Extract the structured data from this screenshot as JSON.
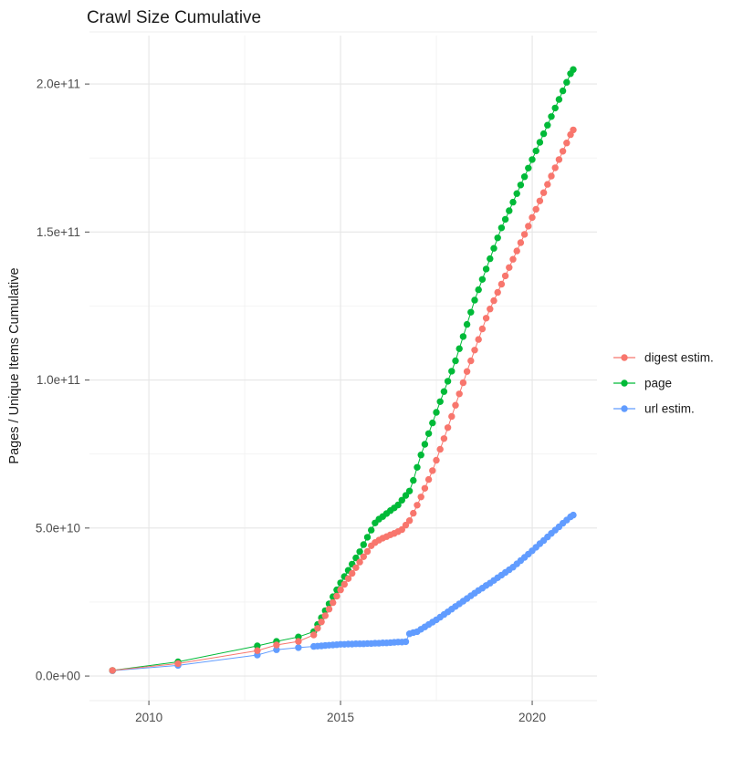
{
  "chart_data": {
    "type": "scatter",
    "title": "Crawl Size Cumulative",
    "xlabel": "",
    "ylabel": "Pages / Unique Items Cumulative",
    "grid": "major and minor, light grey on white",
    "legend_position": "right",
    "value_unit": "billions (1e9 items); y tick labels shown in scientific notation",
    "x_axis": {
      "lim": [
        2008.45,
        2021.69
      ],
      "major_ticks": [
        {
          "value": 2010,
          "label": "2010"
        },
        {
          "value": 2015,
          "label": "2015"
        },
        {
          "value": 2020,
          "label": "2020"
        }
      ],
      "minor_ticks": [
        2012.5,
        2017.5
      ]
    },
    "y_axis": {
      "lim": [
        -8.3,
        217.6
      ],
      "major_ticks": [
        {
          "value": 0,
          "label": "0.0e+00"
        },
        {
          "value": 50,
          "label": "5.0e+10"
        },
        {
          "value": 100,
          "label": "1.0e+11"
        },
        {
          "value": 150,
          "label": "1.5e+11"
        },
        {
          "value": 200,
          "label": "2.0e+11"
        }
      ],
      "minor_ticks": [
        25,
        75,
        125,
        175
      ]
    },
    "series": [
      {
        "name": "digest estim.",
        "color": "#F8766D",
        "points": [
          [
            2009.05,
            1.9
          ],
          [
            2010.76,
            4.2
          ],
          [
            2012.83,
            8.6
          ],
          [
            2013.33,
            10.5
          ],
          [
            2013.9,
            11.7
          ],
          [
            2014.3,
            13.9
          ],
          [
            2014.4,
            16.1
          ],
          [
            2014.5,
            18.3
          ],
          [
            2014.6,
            20.4
          ],
          [
            2014.7,
            22.6
          ],
          [
            2014.8,
            24.8
          ],
          [
            2014.9,
            27.0
          ],
          [
            2015.0,
            29.1
          ],
          [
            2015.1,
            31.0
          ],
          [
            2015.2,
            32.9
          ],
          [
            2015.3,
            34.7
          ],
          [
            2015.4,
            36.6
          ],
          [
            2015.5,
            38.5
          ],
          [
            2015.6,
            40.3
          ],
          [
            2015.7,
            42.1
          ],
          [
            2015.8,
            44.0
          ],
          [
            2015.9,
            45.1
          ],
          [
            2016.0,
            45.9
          ],
          [
            2016.1,
            46.6
          ],
          [
            2016.2,
            47.1
          ],
          [
            2016.3,
            47.7
          ],
          [
            2016.4,
            48.2
          ],
          [
            2016.5,
            48.8
          ],
          [
            2016.6,
            49.5
          ],
          [
            2016.7,
            51.0
          ],
          [
            2016.8,
            52.5
          ],
          [
            2016.9,
            55.0
          ],
          [
            2017.0,
            57.7
          ],
          [
            2017.1,
            60.5
          ],
          [
            2017.2,
            63.4
          ],
          [
            2017.3,
            66.4
          ],
          [
            2017.4,
            69.4
          ],
          [
            2017.5,
            72.9
          ],
          [
            2017.6,
            76.6
          ],
          [
            2017.7,
            80.2
          ],
          [
            2017.8,
            83.9
          ],
          [
            2017.9,
            87.7
          ],
          [
            2018.0,
            91.5
          ],
          [
            2018.1,
            95.3
          ],
          [
            2018.2,
            99.1
          ],
          [
            2018.3,
            102.9
          ],
          [
            2018.4,
            106.5
          ],
          [
            2018.5,
            110.1
          ],
          [
            2018.6,
            113.7
          ],
          [
            2018.7,
            117.3
          ],
          [
            2018.8,
            120.9
          ],
          [
            2018.9,
            124.0
          ],
          [
            2019.0,
            126.8
          ],
          [
            2019.1,
            129.6
          ],
          [
            2019.2,
            132.4
          ],
          [
            2019.3,
            135.2
          ],
          [
            2019.4,
            138.0
          ],
          [
            2019.5,
            140.8
          ],
          [
            2019.6,
            143.6
          ],
          [
            2019.7,
            146.4
          ],
          [
            2019.8,
            149.2
          ],
          [
            2019.9,
            152.0
          ],
          [
            2020.0,
            154.9
          ],
          [
            2020.1,
            157.7
          ],
          [
            2020.2,
            160.5
          ],
          [
            2020.3,
            163.3
          ],
          [
            2020.4,
            166.1
          ],
          [
            2020.5,
            168.9
          ],
          [
            2020.6,
            171.7
          ],
          [
            2020.7,
            174.5
          ],
          [
            2020.8,
            177.3
          ],
          [
            2020.9,
            180.1
          ],
          [
            2021.0,
            182.9
          ],
          [
            2021.07,
            184.5
          ]
        ]
      },
      {
        "name": "page",
        "color": "#00BA38",
        "points": [
          [
            2009.05,
            1.9
          ],
          [
            2010.76,
            4.8
          ],
          [
            2012.83,
            10.2
          ],
          [
            2013.33,
            11.7
          ],
          [
            2013.9,
            13.2
          ],
          [
            2014.3,
            15.0
          ],
          [
            2014.4,
            17.4
          ],
          [
            2014.5,
            19.7
          ],
          [
            2014.6,
            22.1
          ],
          [
            2014.7,
            24.4
          ],
          [
            2014.8,
            26.8
          ],
          [
            2014.9,
            29.1
          ],
          [
            2015.0,
            31.5
          ],
          [
            2015.1,
            33.6
          ],
          [
            2015.2,
            35.7
          ],
          [
            2015.3,
            37.8
          ],
          [
            2015.4,
            39.9
          ],
          [
            2015.5,
            42.0
          ],
          [
            2015.6,
            44.4
          ],
          [
            2015.7,
            46.9
          ],
          [
            2015.8,
            49.3
          ],
          [
            2015.9,
            51.7
          ],
          [
            2016.0,
            53.0
          ],
          [
            2016.1,
            53.9
          ],
          [
            2016.2,
            54.9
          ],
          [
            2016.3,
            55.9
          ],
          [
            2016.4,
            56.8
          ],
          [
            2016.5,
            57.8
          ],
          [
            2016.6,
            59.4
          ],
          [
            2016.7,
            61.0
          ],
          [
            2016.8,
            62.5
          ],
          [
            2016.9,
            66.1
          ],
          [
            2017.0,
            70.5
          ],
          [
            2017.1,
            74.7
          ],
          [
            2017.2,
            78.3
          ],
          [
            2017.3,
            81.9
          ],
          [
            2017.4,
            85.5
          ],
          [
            2017.5,
            89.1
          ],
          [
            2017.6,
            92.7
          ],
          [
            2017.7,
            96.1
          ],
          [
            2017.8,
            99.6
          ],
          [
            2017.9,
            103.0
          ],
          [
            2018.0,
            106.5
          ],
          [
            2018.1,
            110.6
          ],
          [
            2018.2,
            114.7
          ],
          [
            2018.3,
            118.8
          ],
          [
            2018.4,
            122.9
          ],
          [
            2018.5,
            127.0
          ],
          [
            2018.6,
            130.5
          ],
          [
            2018.7,
            134.0
          ],
          [
            2018.8,
            137.5
          ],
          [
            2018.9,
            141.0
          ],
          [
            2019.0,
            144.5
          ],
          [
            2019.1,
            148.0
          ],
          [
            2019.2,
            151.4
          ],
          [
            2019.3,
            154.3
          ],
          [
            2019.4,
            157.2
          ],
          [
            2019.5,
            160.1
          ],
          [
            2019.6,
            163.0
          ],
          [
            2019.7,
            165.9
          ],
          [
            2019.8,
            168.7
          ],
          [
            2019.9,
            171.6
          ],
          [
            2020.0,
            174.5
          ],
          [
            2020.1,
            177.4
          ],
          [
            2020.2,
            180.3
          ],
          [
            2020.3,
            183.2
          ],
          [
            2020.4,
            186.1
          ],
          [
            2020.5,
            189.0
          ],
          [
            2020.6,
            191.9
          ],
          [
            2020.7,
            194.8
          ],
          [
            2020.8,
            197.7
          ],
          [
            2020.9,
            200.6
          ],
          [
            2021.0,
            203.5
          ],
          [
            2021.07,
            204.9
          ]
        ]
      },
      {
        "name": "url estim.",
        "color": "#619CFF",
        "points": [
          [
            2009.05,
            1.8
          ],
          [
            2010.76,
            3.6
          ],
          [
            2012.83,
            7.1
          ],
          [
            2013.33,
            8.9
          ],
          [
            2013.9,
            9.6
          ],
          [
            2014.3,
            10.0
          ],
          [
            2014.4,
            10.1
          ],
          [
            2014.5,
            10.2
          ],
          [
            2014.6,
            10.3
          ],
          [
            2014.7,
            10.4
          ],
          [
            2014.8,
            10.5
          ],
          [
            2014.9,
            10.6
          ],
          [
            2015.0,
            10.7
          ],
          [
            2015.1,
            10.7
          ],
          [
            2015.2,
            10.8
          ],
          [
            2015.3,
            10.8
          ],
          [
            2015.4,
            10.9
          ],
          [
            2015.5,
            10.9
          ],
          [
            2015.6,
            10.9
          ],
          [
            2015.7,
            11.0
          ],
          [
            2015.8,
            11.0
          ],
          [
            2015.9,
            11.1
          ],
          [
            2016.0,
            11.1
          ],
          [
            2016.1,
            11.2
          ],
          [
            2016.2,
            11.2
          ],
          [
            2016.3,
            11.3
          ],
          [
            2016.4,
            11.4
          ],
          [
            2016.5,
            11.5
          ],
          [
            2016.6,
            11.5
          ],
          [
            2016.7,
            11.6
          ],
          [
            2016.8,
            14.3
          ],
          [
            2016.9,
            14.7
          ],
          [
            2017.0,
            15.0
          ],
          [
            2017.1,
            15.8
          ],
          [
            2017.2,
            16.6
          ],
          [
            2017.3,
            17.4
          ],
          [
            2017.4,
            18.2
          ],
          [
            2017.5,
            19.0
          ],
          [
            2017.6,
            19.9
          ],
          [
            2017.7,
            20.8
          ],
          [
            2017.8,
            21.7
          ],
          [
            2017.9,
            22.6
          ],
          [
            2018.0,
            23.5
          ],
          [
            2018.1,
            24.4
          ],
          [
            2018.2,
            25.3
          ],
          [
            2018.3,
            26.2
          ],
          [
            2018.4,
            27.1
          ],
          [
            2018.5,
            28.0
          ],
          [
            2018.6,
            28.9
          ],
          [
            2018.7,
            29.7
          ],
          [
            2018.8,
            30.6
          ],
          [
            2018.9,
            31.4
          ],
          [
            2019.0,
            32.3
          ],
          [
            2019.1,
            33.2
          ],
          [
            2019.2,
            34.1
          ],
          [
            2019.3,
            35.0
          ],
          [
            2019.4,
            35.9
          ],
          [
            2019.5,
            36.8
          ],
          [
            2019.6,
            37.9
          ],
          [
            2019.7,
            39.0
          ],
          [
            2019.8,
            40.1
          ],
          [
            2019.9,
            41.2
          ],
          [
            2020.0,
            42.3
          ],
          [
            2020.1,
            43.5
          ],
          [
            2020.2,
            44.7
          ],
          [
            2020.3,
            45.8
          ],
          [
            2020.4,
            47.0
          ],
          [
            2020.5,
            48.2
          ],
          [
            2020.6,
            49.3
          ],
          [
            2020.7,
            50.4
          ],
          [
            2020.8,
            51.6
          ],
          [
            2020.9,
            52.7
          ],
          [
            2021.0,
            53.8
          ],
          [
            2021.07,
            54.4
          ]
        ]
      }
    ]
  }
}
